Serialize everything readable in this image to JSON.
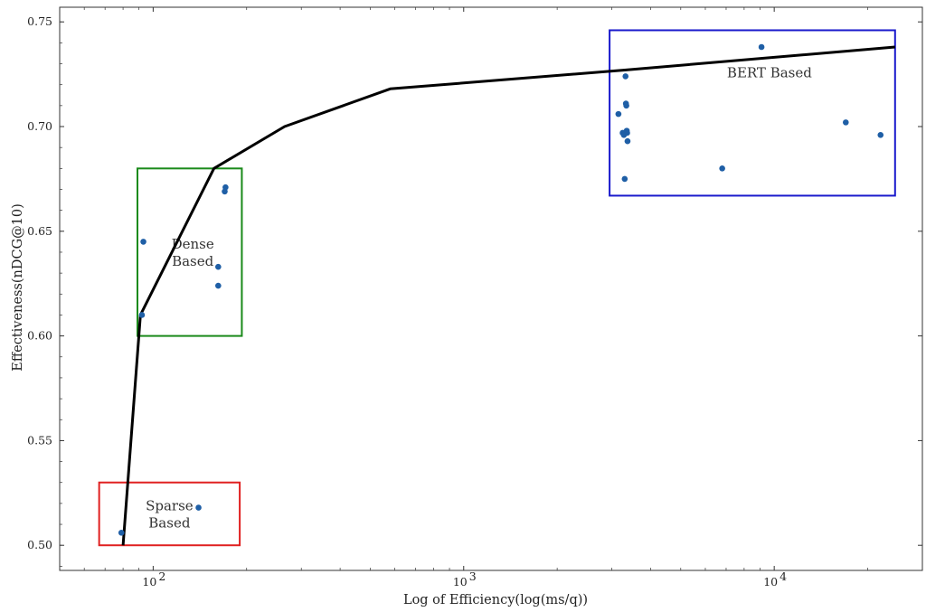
{
  "chart_data": {
    "type": "scatter",
    "xscale": "log",
    "xlim": [
      50,
      30000
    ],
    "ylim": [
      0.488,
      0.757
    ],
    "xlabel": "Log of Efficiency(log(ms/q))",
    "ylabel": "Effectiveness(nDCG@10)",
    "x_ticks": [
      {
        "value": 100,
        "label": "10",
        "exp": "2"
      },
      {
        "value": 1000,
        "label": "10",
        "exp": "3"
      },
      {
        "value": 10000,
        "label": "10",
        "exp": "4"
      }
    ],
    "y_ticks": [
      {
        "value": 0.5,
        "label": "0.50"
      },
      {
        "value": 0.55,
        "label": "0.55"
      },
      {
        "value": 0.6,
        "label": "0.60"
      },
      {
        "value": 0.65,
        "label": "0.65"
      },
      {
        "value": 0.7,
        "label": "0.70"
      },
      {
        "value": 0.75,
        "label": "0.75"
      }
    ],
    "point_color": "#1f5fa6",
    "frontier_color": "#000000",
    "points": [
      {
        "x": 79,
        "y": 0.506
      },
      {
        "x": 140,
        "y": 0.518
      },
      {
        "x": 92,
        "y": 0.61
      },
      {
        "x": 93,
        "y": 0.645
      },
      {
        "x": 162,
        "y": 0.633
      },
      {
        "x": 162,
        "y": 0.624
      },
      {
        "x": 171,
        "y": 0.671
      },
      {
        "x": 170,
        "y": 0.669
      },
      {
        "x": 3150,
        "y": 0.706
      },
      {
        "x": 3250,
        "y": 0.697
      },
      {
        "x": 3280,
        "y": 0.696
      },
      {
        "x": 3320,
        "y": 0.724
      },
      {
        "x": 3330,
        "y": 0.711
      },
      {
        "x": 3340,
        "y": 0.71
      },
      {
        "x": 3350,
        "y": 0.698
      },
      {
        "x": 3360,
        "y": 0.697
      },
      {
        "x": 3370,
        "y": 0.693
      },
      {
        "x": 3300,
        "y": 0.675
      },
      {
        "x": 6800,
        "y": 0.68
      },
      {
        "x": 9100,
        "y": 0.738
      },
      {
        "x": 17000,
        "y": 0.702
      },
      {
        "x": 22000,
        "y": 0.696
      }
    ],
    "frontier": [
      {
        "x": 80,
        "y": 0.5
      },
      {
        "x": 91,
        "y": 0.61
      },
      {
        "x": 157,
        "y": 0.68
      },
      {
        "x": 265,
        "y": 0.7
      },
      {
        "x": 580,
        "y": 0.718
      },
      {
        "x": 3300,
        "y": 0.727
      },
      {
        "x": 24500,
        "y": 0.738
      }
    ],
    "regions": [
      {
        "name": "sparse",
        "label_lines": [
          "Sparse",
          "Based"
        ],
        "color": "#e02020",
        "x0": 67,
        "x1": 190,
        "y0": 0.5,
        "y1": 0.53
      },
      {
        "name": "dense",
        "label_lines": [
          "Dense",
          "Based"
        ],
        "color": "#1a8a1a",
        "x0": 89,
        "x1": 193,
        "y0": 0.6,
        "y1": 0.68
      },
      {
        "name": "bert",
        "label_lines": [
          "BERT Based"
        ],
        "color": "#1a1acc",
        "x0": 2950,
        "x1": 24500,
        "y0": 0.667,
        "y1": 0.746
      }
    ]
  }
}
